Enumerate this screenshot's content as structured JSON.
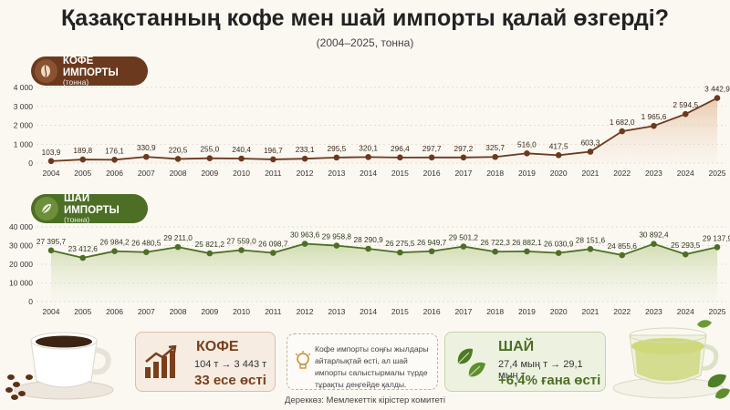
{
  "header": {
    "title": "Қазақстанның кофе мен шай импорты қалай өзгерді?",
    "subtitle": "(2004–2025, тонна)"
  },
  "colors": {
    "coffee": "#6b3a1e",
    "coffee_fill": "#e8c9ae",
    "tea": "#4d6e25",
    "tea_fill": "#cfdcb3"
  },
  "badges": {
    "coffee": {
      "label": "КОФЕ ИМПОРТЫ",
      "unit": "(тонна)",
      "icon": "coffee-bean-icon"
    },
    "tea": {
      "label": "ШАЙ ИМПОРТЫ",
      "unit": "(тонна)",
      "icon": "tea-leaf-icon"
    }
  },
  "chart_data": [
    {
      "type": "area",
      "series_name": "КОФЕ ИМПОРТЫ",
      "x": [
        "2004",
        "2005",
        "2006",
        "2007",
        "2008",
        "2009",
        "2010",
        "2011",
        "2012",
        "2013",
        "2014",
        "2015",
        "2016",
        "2017",
        "2018",
        "2019",
        "2020",
        "2021",
        "2022",
        "2023",
        "2024",
        "2025"
      ],
      "values": [
        103.9,
        189.8,
        176.1,
        330.9,
        220.5,
        255.0,
        240.4,
        196.7,
        233.1,
        295.5,
        320.1,
        296.4,
        297.7,
        297.2,
        325.7,
        516.0,
        417.5,
        603.3,
        1682.0,
        1965.6,
        2594.5,
        3442.9
      ],
      "labels": [
        "103,9",
        "189,8",
        "176,1",
        "330,9",
        "220,5",
        "255,0",
        "240,4",
        "196,7",
        "233,1",
        "295,5",
        "320,1",
        "296,4",
        "297,7",
        "297,2",
        "325,7",
        "516,0",
        "417,5",
        "603,3",
        "1 682,0",
        "1 965,6",
        "2 594,5",
        "3 442,9"
      ],
      "yticks": [
        "0",
        "1 000",
        "2 000",
        "3 000",
        "4 000"
      ],
      "ytick_values": [
        0,
        1000,
        2000,
        3000,
        4000
      ],
      "ylim": [
        0,
        4000
      ],
      "grid": true
    },
    {
      "type": "area",
      "series_name": "ШАЙ ИМПОРТЫ",
      "x": [
        "2004",
        "2005",
        "2006",
        "2007",
        "2008",
        "2009",
        "2010",
        "2011",
        "2012",
        "2013",
        "2014",
        "2015",
        "2016",
        "2017",
        "2018",
        "2019",
        "2020",
        "2021",
        "2022",
        "2023",
        "2024",
        "2025"
      ],
      "values": [
        27395.7,
        23412.6,
        26984.2,
        26480.5,
        29211.0,
        25821.2,
        27559.0,
        26098.7,
        30963.6,
        29958.8,
        28290.9,
        26275.5,
        26949.7,
        29501.2,
        26722.3,
        26882.1,
        26030.9,
        28151.6,
        24855.6,
        30892.4,
        25293.5,
        29137.9
      ],
      "labels": [
        "27 395,7",
        "23 412,6",
        "26 984,2",
        "26 480,5",
        "29 211,0",
        "25 821,2",
        "27 559,0",
        "26 098,7",
        "30 963,6",
        "29 958,8",
        "28 290,9",
        "26 275,5",
        "26 949,7",
        "29 501,2",
        "26 722,3",
        "26 882,1",
        "26 030,9",
        "28 151,6",
        "24 855,6",
        "30 892,4",
        "25 293,5",
        "29 137,9"
      ],
      "yticks": [
        "0",
        "10 000",
        "20 000",
        "30 000",
        "40 000"
      ],
      "ytick_values": [
        0,
        10000,
        20000,
        30000,
        40000
      ],
      "ylim": [
        0,
        40000
      ],
      "grid": true
    }
  ],
  "cards": {
    "coffee": {
      "title": "КОФЕ",
      "change": "104 т → 3 443 т",
      "result": "33 есе өсті",
      "icon": "growth-chart-icon"
    },
    "note": {
      "text": "Кофе импорты соңғы жылдары айтарлықтай өсті, ал шай импорты салыстырмалы түрде тұрақты деңгейде қалды.",
      "icon": "lightbulb-icon"
    },
    "tea": {
      "title": "ШАЙ",
      "change": "27,4 мың т → 29,1 мың т",
      "result": "+6,4% ғана өсті",
      "icon": "tea-leaves-icon"
    }
  },
  "footer": {
    "source": "Дереккөз: Мемлекеттік кірістер комитеті"
  }
}
